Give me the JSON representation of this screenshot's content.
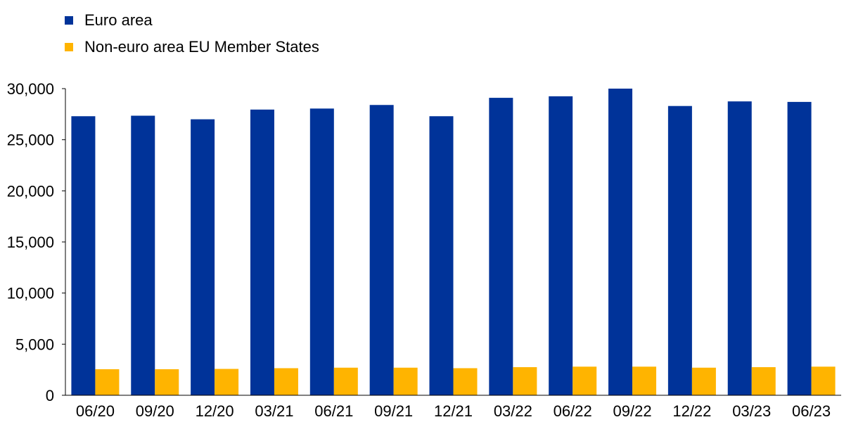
{
  "chart_data": {
    "type": "bar",
    "categories": [
      "06/20",
      "09/20",
      "12/20",
      "03/21",
      "06/21",
      "09/21",
      "12/21",
      "03/22",
      "06/22",
      "09/22",
      "12/22",
      "03/23",
      "06/23"
    ],
    "series": [
      {
        "name": "Euro area",
        "color": "#003399",
        "values": [
          27300,
          27350,
          27000,
          27950,
          28050,
          28400,
          27300,
          29100,
          29250,
          30000,
          28300,
          28750,
          28700
        ]
      },
      {
        "name": "Non-euro area EU Member States",
        "color": "#FFB400",
        "values": [
          2550,
          2550,
          2580,
          2650,
          2700,
          2700,
          2650,
          2750,
          2800,
          2800,
          2700,
          2750,
          2800
        ]
      }
    ],
    "ylim": [
      0,
      30000
    ],
    "yticks": [
      0,
      5000,
      10000,
      15000,
      20000,
      25000,
      30000
    ],
    "ytick_labels": [
      "0",
      "5,000",
      "10,000",
      "15,000",
      "20,000",
      "25,000",
      "30,000"
    ],
    "legend_position": "top-left",
    "grid": false
  }
}
